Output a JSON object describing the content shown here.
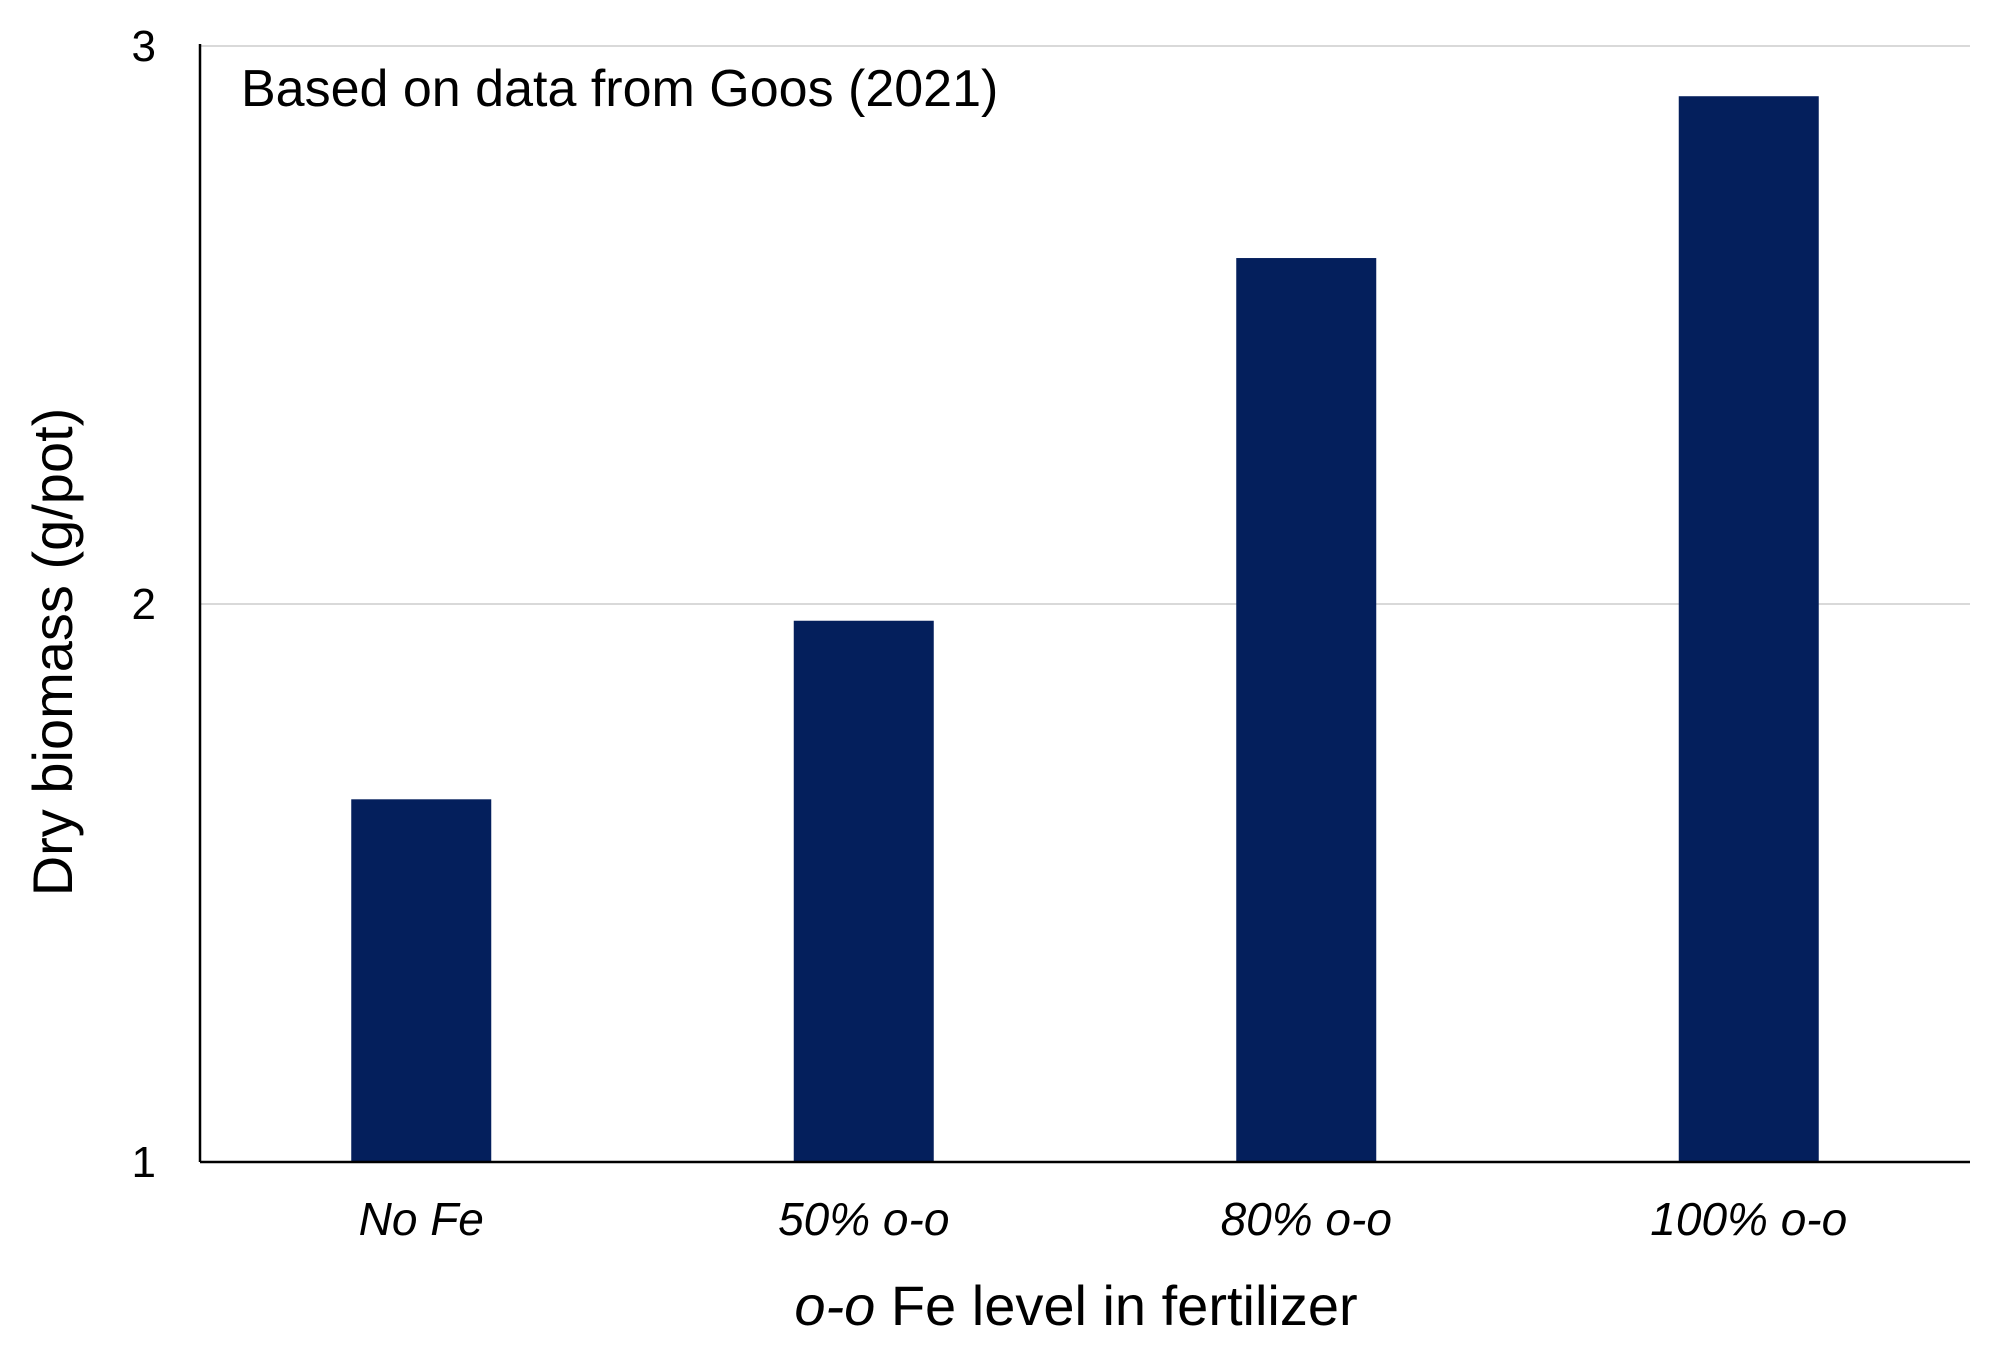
{
  "chart_data": {
    "type": "bar",
    "categories": [
      "No Fe",
      "50% o-o",
      "80% o-o",
      "100% o-o"
    ],
    "values": [
      1.65,
      1.97,
      2.62,
      2.91
    ],
    "annotation": "Based on data from Goos (2021)",
    "xlabel": {
      "italic_part": "o-o",
      "rest": " Fe level in fertilizer"
    },
    "ylabel": "Dry biomass (g/pot)",
    "ylim": [
      1,
      3
    ],
    "yticks": [
      1,
      2,
      3
    ],
    "grid": true,
    "bar_color": "#041f5c"
  }
}
